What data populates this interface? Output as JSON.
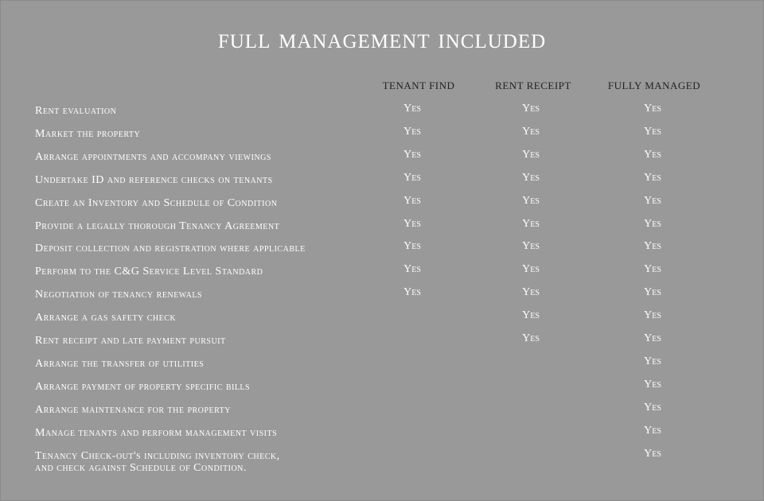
{
  "title": "Full Management Included",
  "columns": [
    "Tenant Find",
    "Rent Receipt",
    "Fully Managed"
  ],
  "rows": [
    {
      "label": "Rent evaluation",
      "values": [
        "Yes",
        "Yes",
        "Yes"
      ]
    },
    {
      "label": "Market the property",
      "values": [
        "Yes",
        "Yes",
        "Yes"
      ]
    },
    {
      "label": "Arrange appointments and accompany viewings",
      "values": [
        "Yes",
        "Yes",
        "Yes"
      ]
    },
    {
      "label": "Undertake ID and reference checks on tenants",
      "values": [
        "Yes",
        "Yes",
        "Yes"
      ]
    },
    {
      "label": "Create an Inventory and Schedule of Condition",
      "values": [
        "Yes",
        "Yes",
        "Yes"
      ]
    },
    {
      "label": "Provide a legally thorough Tenancy Agreement",
      "values": [
        "Yes",
        "Yes",
        "Yes"
      ]
    },
    {
      "label": "Deposit collection and registration where applicable",
      "values": [
        "Yes",
        "Yes",
        "Yes"
      ]
    },
    {
      "label": "Perform to the C&G Service Level Standard",
      "values": [
        "Yes",
        "Yes",
        "Yes"
      ]
    },
    {
      "label": "Negotiation of tenancy renewals",
      "values": [
        "Yes",
        "Yes",
        "Yes"
      ]
    },
    {
      "label": "Arrange a gas safety check",
      "values": [
        "",
        "Yes",
        "Yes"
      ]
    },
    {
      "label": "Rent receipt and late payment pursuit",
      "values": [
        "",
        "Yes",
        "Yes"
      ]
    },
    {
      "label": "Arrange the transfer of utilities",
      "values": [
        "",
        "",
        "Yes"
      ]
    },
    {
      "label": "Arrange payment of property specific bills",
      "values": [
        "",
        "",
        "Yes"
      ]
    },
    {
      "label": "Arrange maintenance for the property",
      "values": [
        "",
        "",
        "Yes"
      ]
    },
    {
      "label": "Manage tenants and perform management visits",
      "values": [
        "",
        "",
        "Yes"
      ]
    },
    {
      "label": "Tenancy Check-out's including inventory check,",
      "label2": "and check against Schedule of Condition.",
      "values": [
        "",
        "",
        "Yes"
      ]
    }
  ]
}
